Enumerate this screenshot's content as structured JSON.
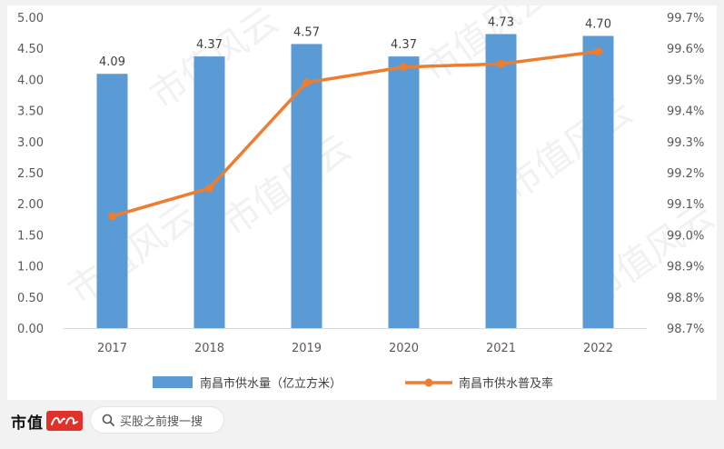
{
  "chart_data": {
    "type": "bar+line",
    "categories": [
      "2017",
      "2018",
      "2019",
      "2020",
      "2021",
      "2022"
    ],
    "series": [
      {
        "name": "南昌市供水量（亿立方米）",
        "type": "bar",
        "axis": "left",
        "color": "#5b9bd5",
        "values": [
          4.09,
          4.37,
          4.57,
          4.37,
          4.73,
          4.7
        ],
        "labels": [
          "4.09",
          "4.37",
          "4.57",
          "4.37",
          "4.73",
          "4.70"
        ]
      },
      {
        "name": "南昌市供水普及率",
        "type": "line",
        "axis": "right",
        "color": "#ed7d31",
        "values": [
          99.06,
          99.15,
          99.49,
          99.54,
          99.55,
          99.59
        ]
      }
    ],
    "y_left": {
      "min": 0,
      "max": 5,
      "ticks": [
        0,
        0.5,
        1,
        1.5,
        2,
        2.5,
        3,
        3.5,
        4,
        4.5,
        5
      ],
      "tick_labels": [
        "0.00",
        "0.50",
        "1.00",
        "1.50",
        "2.00",
        "2.50",
        "3.00",
        "3.50",
        "4.00",
        "4.50",
        "5.00"
      ]
    },
    "y_right": {
      "min": 98.7,
      "max": 99.7,
      "ticks": [
        98.7,
        98.8,
        98.9,
        99.0,
        99.1,
        99.2,
        99.3,
        99.4,
        99.5,
        99.6,
        99.7
      ],
      "tick_labels": [
        "98.7%",
        "98.8%",
        "98.9%",
        "99.0%",
        "99.1%",
        "99.2%",
        "99.3%",
        "99.4%",
        "99.5%",
        "99.6%",
        "99.7%"
      ]
    },
    "grid": false,
    "legend": "bottom"
  },
  "footer": {
    "brand": "市值",
    "brand_mark_text": "风云",
    "search_placeholder": "买股之前搜一搜"
  },
  "watermark": "市值风云",
  "colors": {
    "bar": "#5b9bd5",
    "line": "#ed7d31",
    "brand_red": "#e0322b"
  }
}
